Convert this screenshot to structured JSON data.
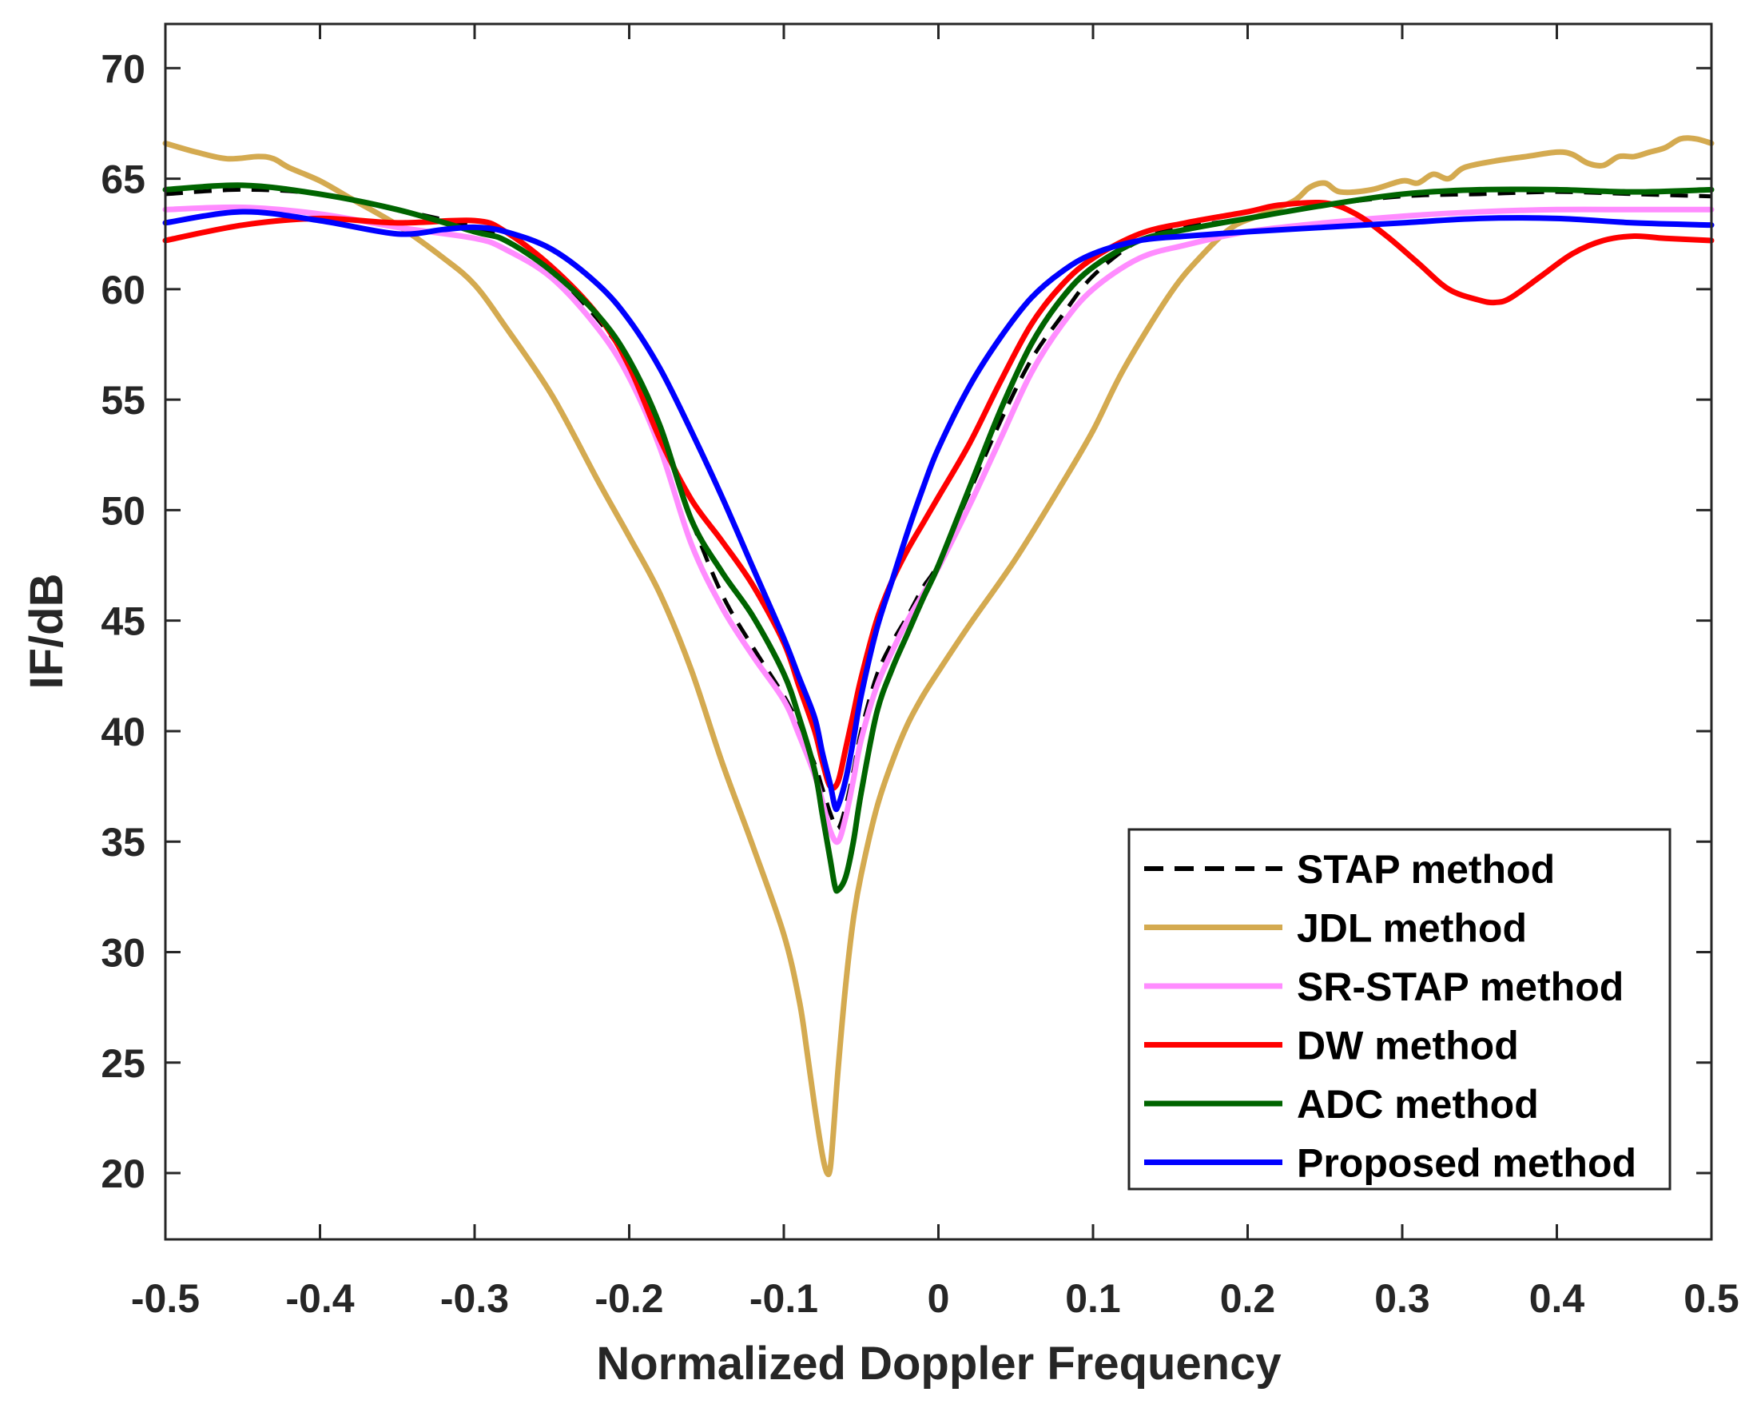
{
  "chart_data": {
    "type": "line",
    "title": "",
    "xlabel": "Normalized Doppler Frequency",
    "ylabel": "IF/dB",
    "xlim": [
      -0.5,
      0.5
    ],
    "ylim": [
      17,
      72
    ],
    "xticks": [
      -0.5,
      -0.4,
      -0.3,
      -0.2,
      -0.1,
      0,
      0.1,
      0.2,
      0.3,
      0.4,
      0.5
    ],
    "xtick_labels": [
      "-0.5",
      "-0.4",
      "-0.3",
      "-0.2",
      "-0.1",
      "0",
      "0.1",
      "0.2",
      "0.3",
      "0.4",
      "0.5"
    ],
    "yticks": [
      20,
      25,
      30,
      35,
      40,
      45,
      50,
      55,
      60,
      65,
      70
    ],
    "ytick_labels": [
      "20",
      "25",
      "30",
      "35",
      "40",
      "45",
      "50",
      "55",
      "60",
      "65",
      "70"
    ],
    "grid": false,
    "legend_position": "bottom-right",
    "series": [
      {
        "name": "STAP method",
        "color": "#000000",
        "dash": "dashed",
        "x": [
          -0.5,
          -0.45,
          -0.4,
          -0.35,
          -0.3,
          -0.28,
          -0.25,
          -0.22,
          -0.2,
          -0.18,
          -0.16,
          -0.14,
          -0.12,
          -0.1,
          -0.09,
          -0.08,
          -0.075,
          -0.07,
          -0.065,
          -0.06,
          -0.055,
          -0.05,
          -0.04,
          -0.03,
          -0.02,
          -0.01,
          0,
          0.02,
          0.04,
          0.06,
          0.08,
          0.1,
          0.13,
          0.16,
          0.2,
          0.25,
          0.3,
          0.35,
          0.4,
          0.45,
          0.5
        ],
        "y": [
          64.3,
          64.5,
          64.3,
          63.6,
          62.8,
          62.2,
          60.8,
          58.6,
          56.6,
          53.5,
          49.6,
          46.2,
          43.8,
          41.6,
          40.2,
          38.5,
          37.4,
          36.3,
          35.6,
          36.6,
          38.2,
          40.0,
          42.5,
          44.0,
          45.2,
          46.5,
          47.6,
          50.8,
          54.0,
          56.8,
          58.8,
          60.6,
          62.2,
          62.8,
          63.2,
          63.8,
          64.2,
          64.3,
          64.4,
          64.3,
          64.2
        ]
      },
      {
        "name": "JDL method",
        "color": "#D4AA50",
        "dash": "solid",
        "x": [
          -0.5,
          -0.48,
          -0.46,
          -0.44,
          -0.43,
          -0.42,
          -0.4,
          -0.38,
          -0.35,
          -0.32,
          -0.3,
          -0.28,
          -0.25,
          -0.22,
          -0.2,
          -0.18,
          -0.16,
          -0.14,
          -0.12,
          -0.1,
          -0.09,
          -0.085,
          -0.08,
          -0.075,
          -0.072,
          -0.07,
          -0.068,
          -0.065,
          -0.06,
          -0.055,
          -0.05,
          -0.04,
          -0.03,
          -0.02,
          -0.01,
          0,
          0.02,
          0.05,
          0.08,
          0.1,
          0.12,
          0.15,
          0.17,
          0.19,
          0.21,
          0.23,
          0.24,
          0.25,
          0.26,
          0.28,
          0.3,
          0.31,
          0.32,
          0.33,
          0.34,
          0.36,
          0.38,
          0.4,
          0.41,
          0.42,
          0.43,
          0.44,
          0.45,
          0.46,
          0.47,
          0.48,
          0.49,
          0.5
        ],
        "y": [
          66.6,
          66.2,
          65.9,
          66.0,
          65.9,
          65.5,
          64.9,
          64.1,
          62.9,
          61.4,
          60.2,
          58.3,
          55.2,
          51.3,
          48.8,
          46.2,
          42.8,
          38.6,
          34.8,
          30.8,
          27.8,
          25.5,
          23.0,
          20.8,
          20.0,
          20.2,
          21.8,
          24.6,
          28.5,
          31.5,
          33.5,
          36.5,
          38.6,
          40.3,
          41.6,
          42.7,
          44.8,
          47.8,
          51.2,
          53.6,
          56.4,
          59.8,
          61.5,
          62.8,
          63.4,
          64.0,
          64.6,
          64.8,
          64.4,
          64.5,
          64.9,
          64.8,
          65.2,
          65.0,
          65.5,
          65.8,
          66.0,
          66.2,
          66.1,
          65.7,
          65.6,
          66.0,
          66.0,
          66.2,
          66.4,
          66.8,
          66.8,
          66.6
        ]
      },
      {
        "name": "SR-STAP method",
        "color": "#FF8CFF",
        "dash": "solid",
        "x": [
          -0.5,
          -0.45,
          -0.4,
          -0.35,
          -0.3,
          -0.28,
          -0.25,
          -0.22,
          -0.2,
          -0.18,
          -0.16,
          -0.14,
          -0.12,
          -0.1,
          -0.09,
          -0.08,
          -0.075,
          -0.07,
          -0.065,
          -0.06,
          -0.055,
          -0.05,
          -0.04,
          -0.03,
          -0.02,
          -0.01,
          0,
          0.02,
          0.04,
          0.06,
          0.08,
          0.1,
          0.13,
          0.16,
          0.2,
          0.25,
          0.3,
          0.35,
          0.4,
          0.45,
          0.5
        ],
        "y": [
          63.6,
          63.7,
          63.4,
          62.8,
          62.3,
          61.8,
          60.5,
          58.2,
          56.0,
          52.8,
          48.5,
          45.6,
          43.4,
          41.4,
          39.8,
          38.0,
          36.8,
          35.5,
          35.0,
          36.1,
          37.8,
          39.6,
          42.0,
          43.6,
          45.0,
          46.2,
          47.4,
          50.2,
          53.2,
          56.2,
          58.4,
          60.0,
          61.4,
          62.0,
          62.6,
          63.0,
          63.3,
          63.5,
          63.6,
          63.6,
          63.6
        ]
      },
      {
        "name": "DW method",
        "color": "#FF0000",
        "dash": "solid",
        "x": [
          -0.5,
          -0.45,
          -0.4,
          -0.35,
          -0.3,
          -0.28,
          -0.25,
          -0.22,
          -0.2,
          -0.18,
          -0.16,
          -0.14,
          -0.12,
          -0.1,
          -0.09,
          -0.08,
          -0.075,
          -0.07,
          -0.065,
          -0.06,
          -0.055,
          -0.05,
          -0.04,
          -0.03,
          -0.02,
          -0.01,
          0,
          0.02,
          0.04,
          0.06,
          0.08,
          0.1,
          0.13,
          0.16,
          0.2,
          0.22,
          0.25,
          0.27,
          0.29,
          0.31,
          0.33,
          0.35,
          0.36,
          0.37,
          0.39,
          0.41,
          0.43,
          0.45,
          0.47,
          0.5
        ],
        "y": [
          62.2,
          62.9,
          63.2,
          63.0,
          63.1,
          62.6,
          61.0,
          58.8,
          56.5,
          53.2,
          50.5,
          48.6,
          46.6,
          44.0,
          42.0,
          40.0,
          38.6,
          37.5,
          37.7,
          39.2,
          40.8,
          42.4,
          45.0,
          46.8,
          48.2,
          49.4,
          50.6,
          53.0,
          55.8,
          58.4,
          60.2,
          61.4,
          62.5,
          63.0,
          63.5,
          63.8,
          63.9,
          63.4,
          62.4,
          61.2,
          60.0,
          59.5,
          59.4,
          59.6,
          60.6,
          61.6,
          62.2,
          62.4,
          62.3,
          62.2
        ]
      },
      {
        "name": "ADC method",
        "color": "#006400",
        "dash": "solid",
        "x": [
          -0.5,
          -0.45,
          -0.4,
          -0.35,
          -0.3,
          -0.28,
          -0.25,
          -0.22,
          -0.2,
          -0.18,
          -0.16,
          -0.14,
          -0.12,
          -0.1,
          -0.09,
          -0.08,
          -0.075,
          -0.07,
          -0.067,
          -0.065,
          -0.06,
          -0.055,
          -0.05,
          -0.04,
          -0.03,
          -0.02,
          -0.01,
          0,
          0.02,
          0.04,
          0.06,
          0.08,
          0.1,
          0.13,
          0.16,
          0.2,
          0.25,
          0.3,
          0.35,
          0.4,
          0.45,
          0.5
        ],
        "y": [
          64.5,
          64.7,
          64.3,
          63.6,
          62.6,
          62.2,
          60.8,
          58.8,
          56.8,
          53.8,
          49.6,
          47.2,
          45.2,
          42.6,
          40.6,
          38.2,
          36.2,
          34.2,
          33.0,
          32.8,
          33.4,
          35.0,
          37.2,
          40.8,
          42.8,
          44.4,
          46.0,
          47.5,
          51.0,
          54.5,
          57.5,
          59.6,
          61.0,
          62.2,
          62.7,
          63.2,
          63.8,
          64.3,
          64.5,
          64.5,
          64.4,
          64.5
        ]
      },
      {
        "name": "Proposed method",
        "color": "#0000FF",
        "dash": "solid",
        "x": [
          -0.5,
          -0.45,
          -0.4,
          -0.35,
          -0.32,
          -0.3,
          -0.28,
          -0.25,
          -0.22,
          -0.2,
          -0.18,
          -0.16,
          -0.14,
          -0.12,
          -0.1,
          -0.09,
          -0.08,
          -0.075,
          -0.07,
          -0.067,
          -0.065,
          -0.06,
          -0.055,
          -0.05,
          -0.04,
          -0.03,
          -0.02,
          -0.01,
          0,
          0.02,
          0.04,
          0.06,
          0.08,
          0.1,
          0.13,
          0.16,
          0.2,
          0.25,
          0.3,
          0.35,
          0.4,
          0.45,
          0.5
        ],
        "y": [
          63.0,
          63.5,
          63.1,
          62.5,
          62.7,
          62.8,
          62.6,
          61.8,
          60.2,
          58.6,
          56.4,
          53.6,
          50.6,
          47.4,
          44.2,
          42.4,
          40.6,
          39.0,
          37.6,
          36.6,
          36.6,
          37.8,
          39.6,
          41.6,
          44.6,
          46.8,
          49.0,
          51.0,
          52.8,
          55.6,
          57.8,
          59.6,
          60.8,
          61.6,
          62.2,
          62.4,
          62.6,
          62.8,
          63.0,
          63.2,
          63.2,
          63.0,
          62.9
        ]
      }
    ]
  }
}
